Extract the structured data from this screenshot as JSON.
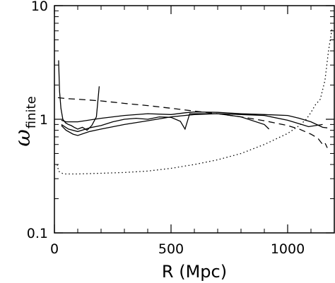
{
  "chart_data": {
    "type": "line",
    "title": "",
    "xlabel": "R (Mpc)",
    "ylabel": {
      "main": "ω",
      "sub": "finite"
    },
    "xlim": [
      0,
      1200
    ],
    "ylim": [
      0.1,
      10
    ],
    "yscale": "log",
    "grid": false,
    "legend": "none",
    "x_ticks": [
      {
        "value": 0,
        "label": "0"
      },
      {
        "value": 500,
        "label": "500"
      },
      {
        "value": 1000,
        "label": "1000"
      }
    ],
    "y_ticks": [
      {
        "value": 0.1,
        "label": "0.1"
      },
      {
        "value": 1,
        "label": "1"
      },
      {
        "value": 10,
        "label": "10"
      }
    ],
    "series": [
      {
        "style": "solid",
        "x": [
          18,
          22,
          28,
          36,
          48,
          60,
          72,
          85,
          100,
          120,
          140,
          160,
          180,
          192
        ],
        "y": [
          3.3,
          1.75,
          1.25,
          1.0,
          0.93,
          0.9,
          0.88,
          0.85,
          0.82,
          0.85,
          0.8,
          0.88,
          1.05,
          1.95
        ]
      },
      {
        "style": "solid",
        "x": [
          30,
          50,
          100,
          200,
          300,
          400,
          500,
          560,
          600,
          700,
          800,
          900,
          1000,
          1050,
          1100,
          1150,
          1170
        ],
        "y": [
          0.98,
          0.95,
          0.95,
          1.02,
          1.08,
          1.12,
          1.1,
          1.14,
          1.16,
          1.15,
          1.12,
          1.1,
          1.08,
          1.02,
          0.95,
          0.85,
          0.84
        ]
      },
      {
        "style": "solid",
        "x": [
          30,
          60,
          100,
          150,
          200,
          250,
          300,
          350,
          400,
          450,
          500,
          540,
          560,
          580,
          600,
          700,
          800,
          900,
          920
        ],
        "y": [
          0.9,
          0.82,
          0.78,
          0.84,
          0.88,
          0.95,
          1.0,
          1.02,
          1.0,
          1.05,
          1.04,
          0.96,
          0.82,
          1.12,
          1.12,
          1.12,
          1.05,
          0.9,
          0.82
        ]
      },
      {
        "style": "solid",
        "x": [
          30,
          50,
          80,
          100,
          150,
          200,
          300,
          400,
          500,
          600,
          700,
          800,
          900,
          1000,
          1060,
          1090,
          1120,
          1150
        ],
        "y": [
          0.88,
          0.8,
          0.74,
          0.72,
          0.78,
          0.82,
          0.9,
          0.97,
          1.05,
          1.1,
          1.12,
          1.1,
          1.08,
          0.98,
          0.9,
          0.86,
          0.88,
          0.9
        ]
      },
      {
        "style": "dashed",
        "x": [
          15,
          50,
          100,
          200,
          300,
          400,
          500,
          600,
          700,
          800,
          900,
          1000,
          1050,
          1100,
          1130,
          1150,
          1160,
          1170
        ],
        "y": [
          1.55,
          1.52,
          1.5,
          1.45,
          1.38,
          1.32,
          1.25,
          1.18,
          1.12,
          1.05,
          0.97,
          0.88,
          0.82,
          0.74,
          0.68,
          0.6,
          0.62,
          0.56
        ]
      },
      {
        "style": "dotted",
        "x": [
          12,
          18,
          25,
          40,
          60,
          100,
          200,
          300,
          400,
          500,
          600,
          700,
          800,
          900,
          1000,
          1050,
          1080,
          1100,
          1120,
          1140,
          1160,
          1175,
          1190
        ],
        "y": [
          0.4,
          0.35,
          0.34,
          0.33,
          0.33,
          0.33,
          0.335,
          0.34,
          0.35,
          0.37,
          0.4,
          0.44,
          0.5,
          0.6,
          0.75,
          0.88,
          1.0,
          1.15,
          1.35,
          1.5,
          2.2,
          4.0,
          6.2
        ]
      }
    ]
  }
}
